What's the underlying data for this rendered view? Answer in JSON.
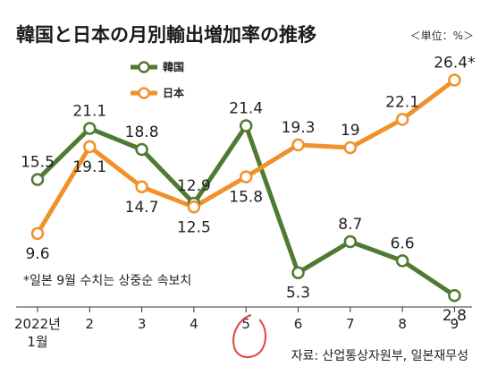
{
  "chart_data": {
    "type": "line",
    "title": "韓国と日本の月別輸出増加率の推移",
    "unit_label": "＜単位：%＞",
    "categories": [
      "2022년\n1월",
      "2",
      "3",
      "4",
      "5",
      "6",
      "7",
      "8",
      "9"
    ],
    "series": [
      {
        "name": "韓国",
        "color": "#4f7a32",
        "values": [
          15.5,
          21.1,
          18.8,
          12.9,
          21.4,
          5.3,
          8.7,
          6.6,
          2.8
        ],
        "labels": [
          "15.5",
          "21.1",
          "18.8",
          "12.9",
          "21.4",
          "5.3",
          "8.7",
          "6.6",
          "2.8"
        ]
      },
      {
        "name": "日本",
        "color": "#f0922c",
        "values": [
          9.6,
          19.1,
          14.7,
          12.5,
          15.8,
          19.3,
          19,
          22.1,
          26.4
        ],
        "labels": [
          "9.6",
          "19.1",
          "14.7",
          "12.5",
          "15.8",
          "19.3",
          "19",
          "22.1",
          "26.4*"
        ]
      }
    ],
    "ylim": [
      0,
      30
    ],
    "grid": false,
    "legend_position": "top-left",
    "note": "*일본 9월 수치는 상중순 속보치",
    "source": "자료: 산업통상자원부, 일본재무성"
  }
}
